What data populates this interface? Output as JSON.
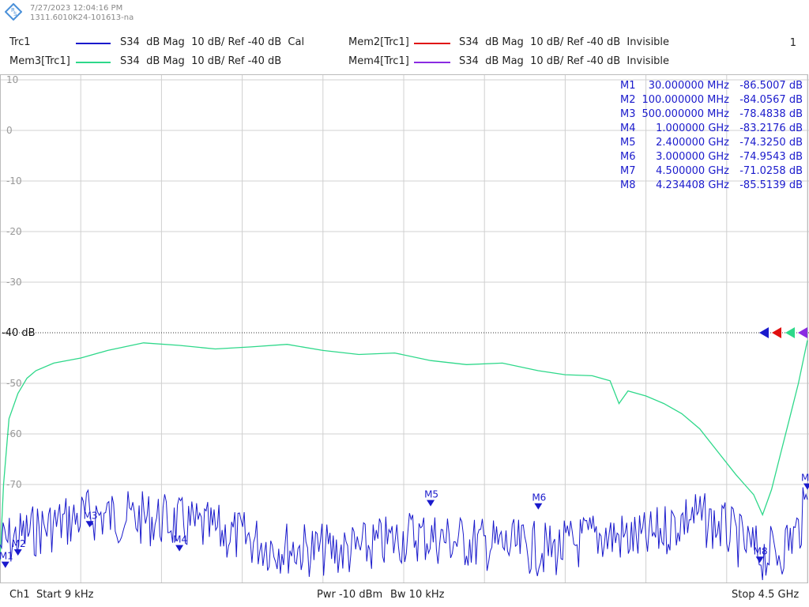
{
  "header": {
    "timestamp": "7/27/2023 12:04:16 PM",
    "instrument": "1311.6010K24-101613-na",
    "page_number": "1",
    "logo_letters": "RS"
  },
  "traces": [
    {
      "name": "Trc1",
      "param": "S34",
      "format": "dB Mag",
      "scale": "10 dB/",
      "ref": "Ref -40 dB",
      "status": "Cal",
      "color": "#1a1acc"
    },
    {
      "name": "Mem2[Trc1]",
      "param": "S34",
      "format": "dB Mag",
      "scale": "10 dB/",
      "ref": "Ref -40 dB",
      "status": "Invisible",
      "color": "#e01010"
    },
    {
      "name": "Mem3[Trc1]",
      "param": "S34",
      "format": "dB Mag",
      "scale": "10 dB/",
      "ref": "Ref -40 dB",
      "status": "",
      "color": "#2ed88a"
    },
    {
      "name": "Mem4[Trc1]",
      "param": "S34",
      "format": "dB Mag",
      "scale": "10 dB/",
      "ref": "Ref -40 dB",
      "status": "Invisible",
      "color": "#8a2be2"
    }
  ],
  "footer": {
    "channel": "Ch1",
    "start": "Start  9 kHz",
    "power": "Pwr  -10 dBm",
    "bandwidth": "Bw  10 kHz",
    "stop": "Stop  4.5 GHz"
  },
  "chart_data": {
    "type": "line",
    "xlabel": "",
    "ylabel": "",
    "xlim": [
      9e-06,
      4.5
    ],
    "x_unit": "GHz",
    "ylim": [
      -85,
      10
    ],
    "y_unit": "dB",
    "reference_level": -40,
    "reference_label": "-40 dB",
    "y_ticks": [
      {
        "value": 10,
        "label": "10"
      },
      {
        "value": 0,
        "label": "0"
      },
      {
        "value": -10,
        "label": "-10"
      },
      {
        "value": -20,
        "label": "-20"
      },
      {
        "value": -30,
        "label": "-30"
      },
      {
        "value": -40,
        "label": "-40 dB"
      },
      {
        "value": -50,
        "label": "-50"
      },
      {
        "value": -60,
        "label": "-60"
      },
      {
        "value": -70,
        "label": "-70"
      }
    ],
    "grid": true,
    "series": [
      {
        "name": "Mem3[Trc1]",
        "color": "#2ed88a",
        "x": [
          9e-06,
          0.02,
          0.05,
          0.1,
          0.15,
          0.2,
          0.3,
          0.45,
          0.6,
          0.8,
          1.0,
          1.2,
          1.4,
          1.6,
          1.8,
          2.0,
          2.2,
          2.4,
          2.6,
          2.8,
          3.0,
          3.15,
          3.3,
          3.4,
          3.45,
          3.5,
          3.6,
          3.7,
          3.8,
          3.9,
          4.0,
          4.1,
          4.15,
          4.2,
          4.25,
          4.3,
          4.35,
          4.4,
          4.45,
          4.5
        ],
        "y": [
          -85,
          -70,
          -57,
          -52,
          -49,
          -47.5,
          -46,
          -45,
          -43.5,
          -42,
          -42.5,
          -43.2,
          -42.8,
          -42.3,
          -43.5,
          -44.3,
          -44.0,
          -45.5,
          -46.3,
          -46.0,
          -47.5,
          -48.3,
          -48.5,
          -49.5,
          -54,
          -51.5,
          -52.5,
          -54,
          -56,
          -59,
          -63.5,
          -68,
          -70,
          -72,
          -76,
          -71,
          -64,
          -57,
          -50,
          -41.5
        ]
      },
      {
        "name": "Trc1",
        "color": "#1a1acc",
        "x": [
          9e-06,
          0.2,
          0.5,
          0.9,
          1.3,
          1.5,
          1.75,
          2.0,
          2.3,
          2.75,
          3.1,
          3.35,
          3.6,
          3.85,
          4.05,
          4.15,
          4.25,
          4.35,
          4.45,
          4.5
        ],
        "y": [
          -82,
          -79,
          -76,
          -77,
          -80,
          -82,
          -83,
          -83,
          -80,
          -82,
          -83,
          -80,
          -81,
          -76,
          -79,
          -82,
          -84,
          -83,
          -79,
          -73
        ]
      }
    ],
    "markers": [
      {
        "name": "M1",
        "x": 0.03,
        "x_label": "30.000000 MHz",
        "y": -86.5007,
        "y_label": "-86.5007 dB"
      },
      {
        "name": "M2",
        "x": 0.1,
        "x_label": "100.000000 MHz",
        "y": -84.0567,
        "y_label": "-84.0567 dB"
      },
      {
        "name": "M3",
        "x": 0.5,
        "x_label": "500.000000 MHz",
        "y": -78.4838,
        "y_label": "-78.4838 dB"
      },
      {
        "name": "M4",
        "x": 1.0,
        "x_label": "1.000000 GHz",
        "y": -83.2176,
        "y_label": "-83.2176 dB"
      },
      {
        "name": "M5",
        "x": 2.4,
        "x_label": "2.400000 GHz",
        "y": -74.325,
        "y_label": "-74.3250 dB"
      },
      {
        "name": "M6",
        "x": 3.0,
        "x_label": "3.000000 GHz",
        "y": -74.9543,
        "y_label": "-74.9543 dB"
      },
      {
        "name": "M7",
        "x": 4.5,
        "x_label": "4.500000 GHz",
        "y": -71.0258,
        "y_label": "-71.0258 dB"
      },
      {
        "name": "M8",
        "x": 4.234408,
        "x_label": "4.234408 GHz",
        "y": -85.5139,
        "y_label": "-85.5139 dB"
      }
    ]
  }
}
